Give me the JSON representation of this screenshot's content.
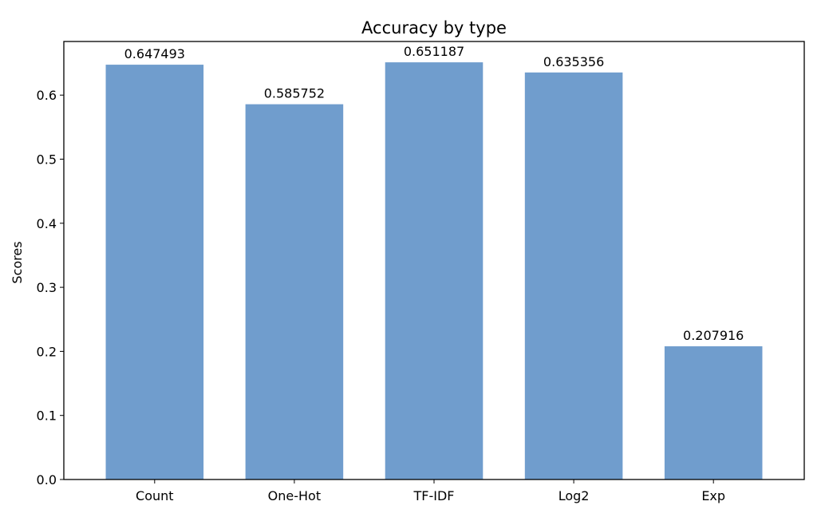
{
  "chart_data": {
    "type": "bar",
    "title": "Accuracy by type",
    "xlabel": "",
    "ylabel": "Scores",
    "categories": [
      "Count",
      "One-Hot",
      "TF-IDF",
      "Log2",
      "Exp"
    ],
    "values": [
      0.647493,
      0.585752,
      0.651187,
      0.635356,
      0.207916
    ],
    "value_labels": [
      "0.647493",
      "0.585752",
      "0.651187",
      "0.635356",
      "0.207916"
    ],
    "ylim": [
      0,
      0.6837
    ],
    "yticks": [
      0.0,
      0.1,
      0.2,
      0.3,
      0.4,
      0.5,
      0.6
    ],
    "ytick_labels": [
      "0.0",
      "0.1",
      "0.2",
      "0.3",
      "0.4",
      "0.5",
      "0.6"
    ],
    "grid": false,
    "legend": "none",
    "bar_color": "#709dcd"
  }
}
